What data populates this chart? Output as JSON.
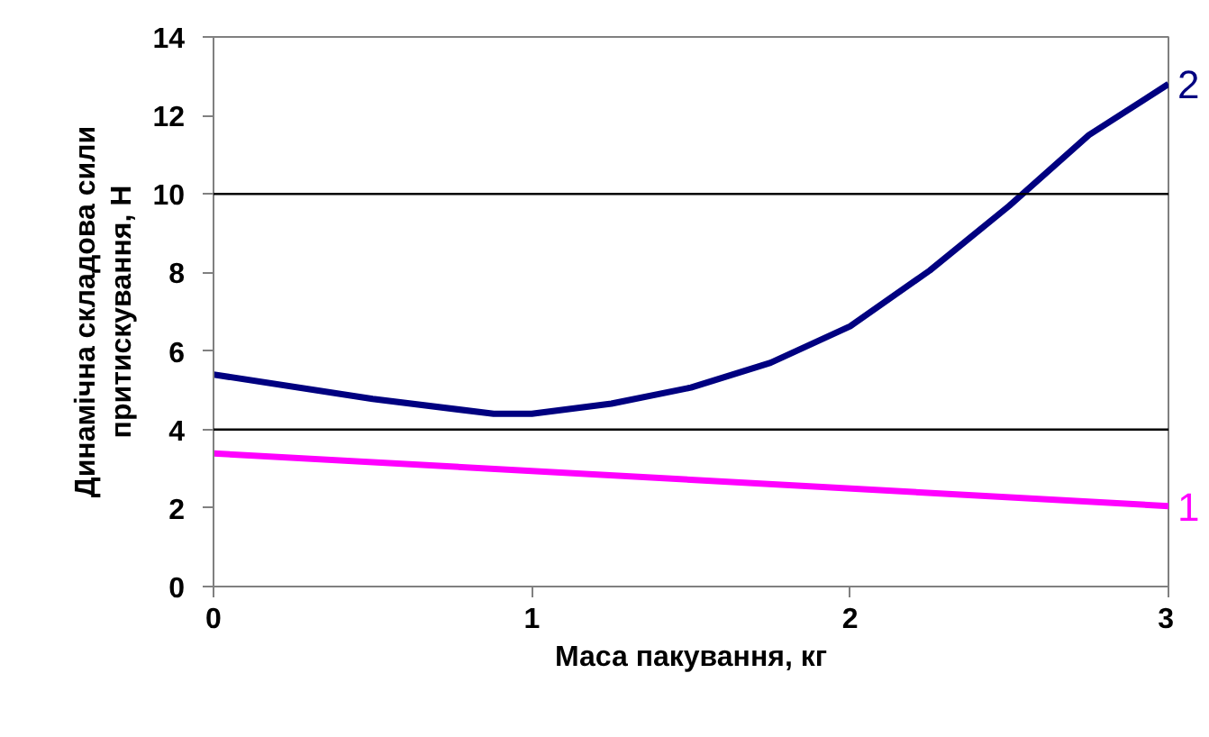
{
  "chart_data": {
    "type": "line",
    "xlabel": "Маса пакування, кг",
    "ylabel": "Динамічна складова сили\nпритискування, Н",
    "xlim": [
      0,
      3
    ],
    "xticks": [
      0,
      1,
      2,
      3
    ],
    "ylim": [
      0,
      14
    ],
    "yticks": [
      0,
      2,
      4,
      6,
      8,
      10,
      12,
      14
    ],
    "grid": false,
    "legend": false,
    "ref_lines": [
      {
        "axis": "y",
        "value": 4,
        "color": "#000000"
      },
      {
        "axis": "y",
        "value": 10,
        "color": "#000000"
      }
    ],
    "series": [
      {
        "name": "1",
        "color": "#ff00ff",
        "x": [
          0,
          3
        ],
        "values": [
          3.39,
          2.05
        ]
      },
      {
        "name": "2",
        "color": "#000080",
        "x": [
          0,
          0.5,
          0.88,
          1.0,
          1.25,
          1.5,
          1.75,
          2.0,
          2.25,
          2.5,
          2.75,
          3.0
        ],
        "values": [
          5.4,
          4.78,
          4.4,
          4.4,
          4.66,
          5.07,
          5.7,
          6.63,
          8.05,
          9.7,
          11.5,
          12.8
        ]
      }
    ]
  }
}
